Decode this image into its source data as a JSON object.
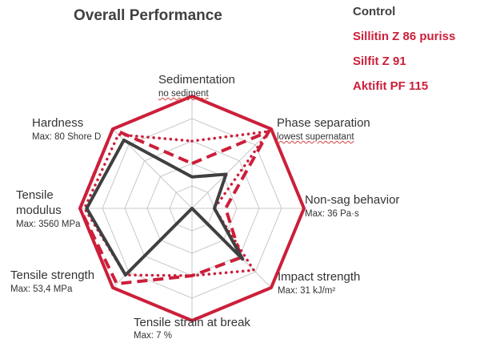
{
  "chart_data": {
    "type": "radar",
    "title": "Overall Performance",
    "axes": [
      {
        "name": "Sedimentation",
        "sub": "no sediment"
      },
      {
        "name": "Phase separation",
        "sub": "lowest supernatant"
      },
      {
        "name": "Non-sag behavior",
        "sub": "Max: 36 Pa·s"
      },
      {
        "name": "Impact strength",
        "sub": "Max: 31 kJ/m²"
      },
      {
        "name": "Tensile strain at break",
        "sub": "Max: 7 %"
      },
      {
        "name": "Tensile strength",
        "sub": "Max: 53,4 MPa"
      },
      {
        "name": "Tensile modulus",
        "sub": "Max: 3560 MPa"
      },
      {
        "name": "Hardness",
        "sub": "Max: 80 Shore D"
      }
    ],
    "scale": [
      0,
      1
    ],
    "rings": 5,
    "series": [
      {
        "name": "Control",
        "color": "#404040",
        "style": "solid",
        "values": [
          0.28,
          0.43,
          0.2,
          0.64,
          0.0,
          0.84,
          0.94,
          0.86
        ]
      },
      {
        "name": "Sillitin Z 86 puriss",
        "color": "#cc1f3a",
        "style": "dotted",
        "values": [
          0.6,
          0.97,
          0.2,
          0.78,
          0.6,
          0.84,
          0.96,
          0.93
        ]
      },
      {
        "name": "Silfit Z 91",
        "color": "#cc1f3a",
        "style": "dashed",
        "values": [
          0.4,
          0.97,
          0.3,
          0.62,
          0.6,
          0.95,
          1.0,
          1.0
        ]
      },
      {
        "name": "Aktifit PF 115",
        "color": "#cc1f3a",
        "style": "solid",
        "values": [
          1.0,
          1.0,
          1.0,
          1.0,
          1.0,
          1.0,
          1.0,
          1.0
        ]
      }
    ]
  }
}
